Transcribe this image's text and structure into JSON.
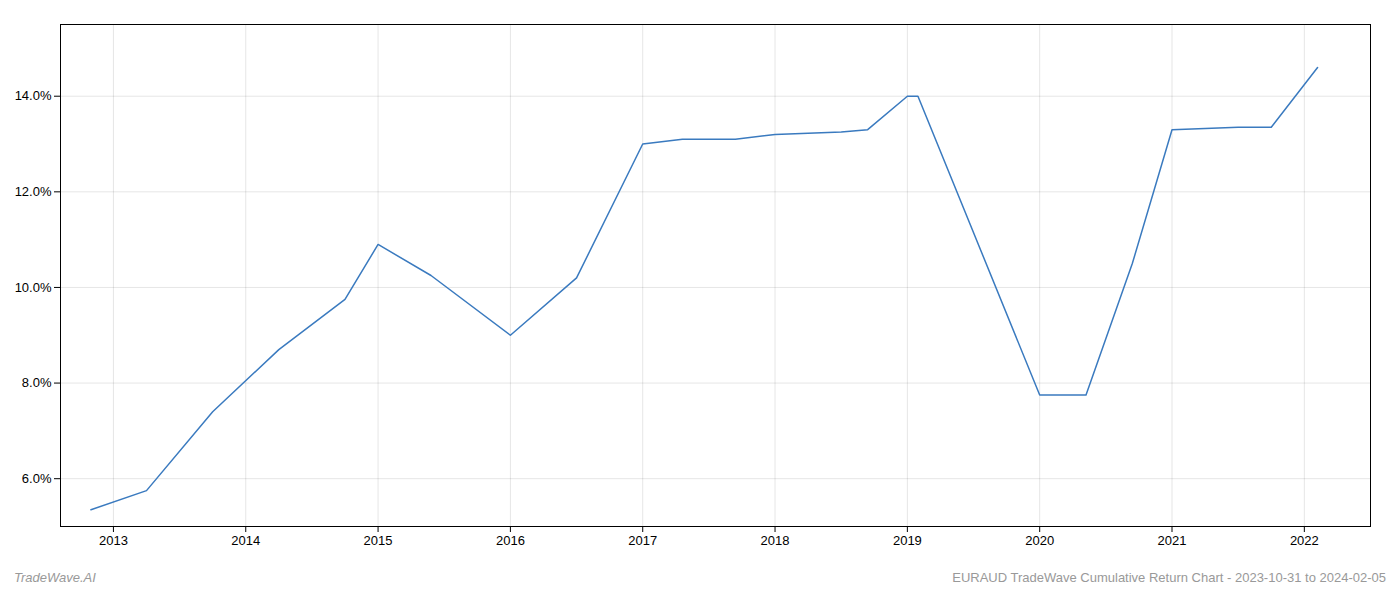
{
  "chart_data": {
    "type": "line",
    "x": [
      2012.83,
      2013.25,
      2013.75,
      2014.25,
      2014.75,
      2015.0,
      2015.4,
      2016.0,
      2016.5,
      2017.0,
      2017.3,
      2017.7,
      2018.0,
      2018.5,
      2018.7,
      2019.0,
      2019.08,
      2020.0,
      2020.35,
      2020.7,
      2021.0,
      2021.5,
      2021.75,
      2022.1
    ],
    "values": [
      5.35,
      5.75,
      7.4,
      8.7,
      9.75,
      10.9,
      10.25,
      9.0,
      10.2,
      13.0,
      13.1,
      13.1,
      13.2,
      13.25,
      13.3,
      14.0,
      14.0,
      7.75,
      7.75,
      10.5,
      13.3,
      13.35,
      13.35,
      14.6
    ],
    "color": "#3a7abf",
    "xlim": [
      2012.6,
      2022.5
    ],
    "xticks": [
      2013,
      2014,
      2015,
      2016,
      2017,
      2018,
      2019,
      2020,
      2021,
      2022
    ],
    "ylim": [
      5.0,
      15.5
    ],
    "yticks": [
      {
        "value": 6.0,
        "label": "6.0%"
      },
      {
        "value": 8.0,
        "label": "8.0%"
      },
      {
        "value": 10.0,
        "label": "10.0%"
      },
      {
        "value": 12.0,
        "label": "12.0%"
      },
      {
        "value": 14.0,
        "label": "14.0%"
      }
    ],
    "grid": true,
    "annotations": [
      "TradeWave.AI",
      "EURAUD TradeWave Cumulative Return Chart - 2023-10-31 to 2024-02-05"
    ]
  }
}
